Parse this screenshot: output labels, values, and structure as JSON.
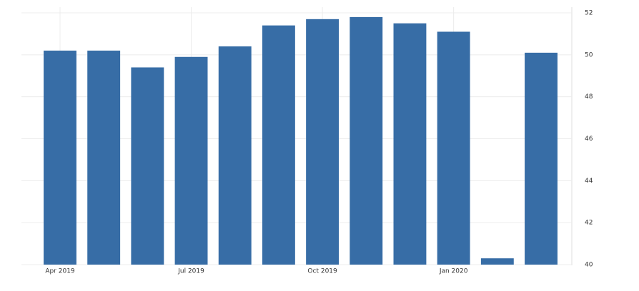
{
  "chart_data": {
    "type": "bar",
    "categories": [
      "Apr 2019",
      null,
      null,
      "Jul 2019",
      null,
      null,
      "Oct 2019",
      null,
      null,
      "Jan 2020",
      null,
      null
    ],
    "values": [
      50.2,
      50.2,
      49.4,
      49.9,
      50.4,
      51.4,
      51.7,
      51.8,
      51.5,
      51.1,
      40.3,
      50.1
    ],
    "color": "#376da6",
    "ylim": [
      40,
      52
    ],
    "yticks": [
      40,
      42,
      44,
      46,
      48,
      50,
      52
    ],
    "grid": true
  }
}
